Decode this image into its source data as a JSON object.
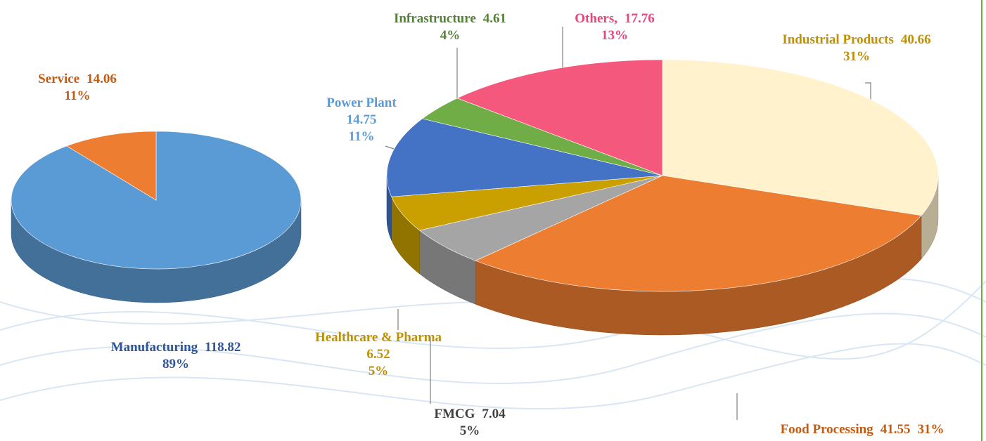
{
  "chart_data": [
    {
      "type": "pie3d",
      "labels": [
        "Manufacturing",
        "Service"
      ],
      "values": [
        118.82,
        14.06
      ],
      "percent_labels": [
        "89%",
        "11%"
      ],
      "colors": [
        "#5b9bd5",
        "#ed7d31"
      ],
      "label_colors": [
        "#2f5597",
        "#c55a11"
      ]
    },
    {
      "type": "pie3d",
      "labels": [
        "Industrial Products",
        "Food Processing",
        "FMCG",
        "Healthcare & Pharma",
        "Power Plant",
        "Infrastructure",
        "Others,"
      ],
      "values": [
        40.66,
        41.55,
        7.04,
        6.52,
        14.75,
        4.61,
        17.76
      ],
      "percent_labels": [
        "31%",
        "31%",
        "5%",
        "5%",
        "11%",
        "4%",
        "13%"
      ],
      "colors": [
        "#fff2cc",
        "#ed7d31",
        "#a5a5a5",
        "#c9a000",
        "#4472c4",
        "#70ad47",
        "#f4587c"
      ],
      "label_colors": [
        "#bf9000",
        "#c55a11",
        "#404040",
        "#bf9000",
        "#5b9bd5",
        "#548235",
        "#e8467c"
      ]
    }
  ]
}
